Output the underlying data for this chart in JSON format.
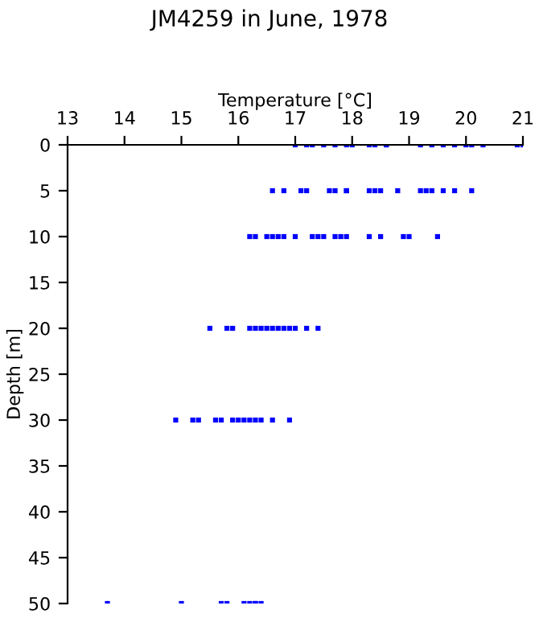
{
  "chart_data": {
    "type": "scatter",
    "title": "JM4259 in June, 1978",
    "xlabel": "Temperature [°C]",
    "ylabel": "Depth [m]",
    "xlim": [
      13,
      21
    ],
    "xticks": [
      13,
      14,
      15,
      16,
      17,
      18,
      19,
      20,
      21
    ],
    "ylim": [
      50,
      0
    ],
    "yticks": [
      0,
      5,
      10,
      15,
      20,
      25,
      30,
      35,
      40,
      45,
      50
    ],
    "marker": "square",
    "grid": false,
    "legend": false,
    "series": [
      {
        "color": "#0000ff",
        "x": [
          17.0,
          17.2,
          17.3,
          17.5,
          17.7,
          17.9,
          18.0,
          18.3,
          18.4,
          18.6,
          18.6,
          19.2,
          19.4,
          19.6,
          19.8,
          20.0,
          20.1,
          20.3,
          20.9,
          21.0,
          16.6,
          16.8,
          17.1,
          17.2,
          17.6,
          17.7,
          17.9,
          17.9,
          18.3,
          18.4,
          18.5,
          18.8,
          19.2,
          19.3,
          19.4,
          19.6,
          19.8,
          20.1,
          16.2,
          16.3,
          16.5,
          16.6,
          16.7,
          16.8,
          17.0,
          17.3,
          17.4,
          17.5,
          17.7,
          17.8,
          17.9,
          18.3,
          18.5,
          18.9,
          19.0,
          19.5,
          15.5,
          15.8,
          15.9,
          16.2,
          16.3,
          16.4,
          16.5,
          16.6,
          16.7,
          16.8,
          16.9,
          17.0,
          17.2,
          17.4,
          14.9,
          15.2,
          15.3,
          15.6,
          15.7,
          15.9,
          16.0,
          16.1,
          16.2,
          16.3,
          16.4,
          16.6,
          16.9,
          13.7,
          15.0,
          15.7,
          15.8,
          16.1,
          16.2,
          16.3,
          16.3,
          16.4
        ],
        "values": [
          0,
          0,
          0,
          0,
          0,
          0,
          0,
          0,
          0,
          0,
          0,
          0,
          0,
          0,
          0,
          0,
          0,
          0,
          0,
          0,
          5,
          5,
          5,
          5,
          5,
          5,
          5,
          5,
          5,
          5,
          5,
          5,
          5,
          5,
          5,
          5,
          5,
          5,
          10,
          10,
          10,
          10,
          10,
          10,
          10,
          10,
          10,
          10,
          10,
          10,
          10,
          10,
          10,
          10,
          10,
          10,
          20,
          20,
          20,
          20,
          20,
          20,
          20,
          20,
          20,
          20,
          20,
          20,
          20,
          20,
          30,
          30,
          30,
          30,
          30,
          30,
          30,
          30,
          30,
          30,
          30,
          30,
          30,
          50,
          50,
          50,
          50,
          50,
          50,
          50,
          50,
          50
        ]
      }
    ]
  }
}
